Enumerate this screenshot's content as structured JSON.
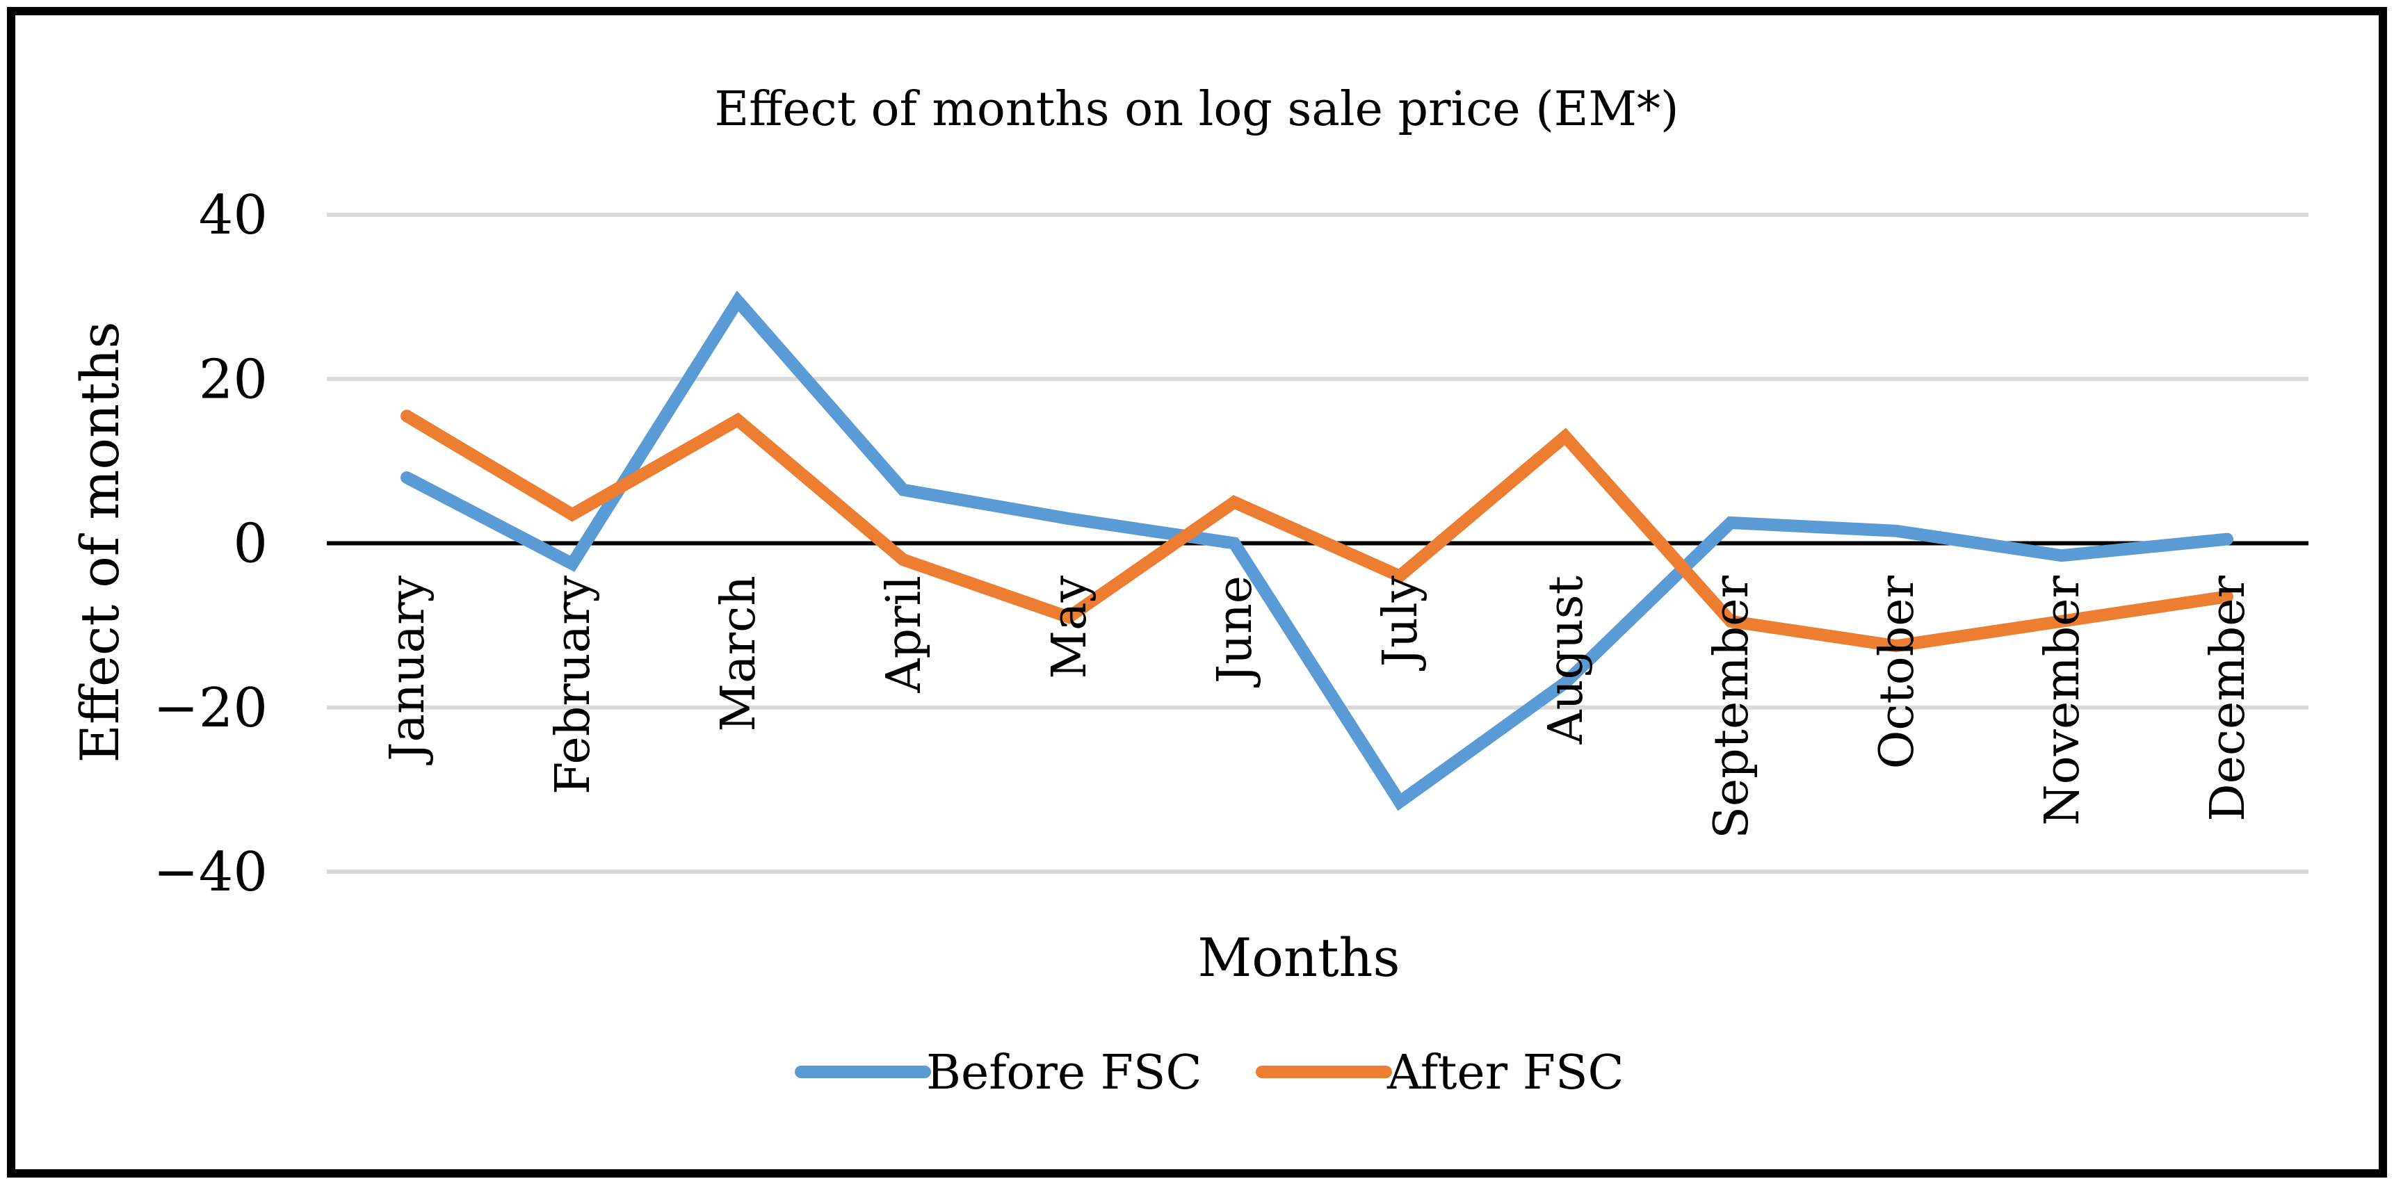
{
  "chart_data": {
    "type": "line",
    "title": "Effect of months on log sale price (EM*)",
    "xlabel": "Months",
    "ylabel": "Effect of months",
    "ylim": [
      -40,
      40
    ],
    "yticks": [
      40,
      20,
      0,
      -20,
      -40
    ],
    "ytick_labels": [
      "40",
      "20",
      "0",
      "−20",
      "−40"
    ],
    "grid": true,
    "legend_position": "bottom",
    "categories": [
      "January",
      "February",
      "March",
      "April",
      "May",
      "June",
      "July",
      "August",
      "September",
      "October",
      "November",
      "December"
    ],
    "series": [
      {
        "name": "Before FSC",
        "color": "#5b9bd5",
        "values": [
          8,
          -2.5,
          29.5,
          6.5,
          3,
          0,
          -31.5,
          -17,
          2.5,
          1.5,
          -1.5,
          0.5
        ]
      },
      {
        "name": "After FSC",
        "color": "#ed7d31",
        "values": [
          15.5,
          3.5,
          15,
          -2,
          -9,
          5,
          -4,
          13,
          -9.5,
          -12.5,
          -9.5,
          -6.5
        ]
      }
    ]
  }
}
